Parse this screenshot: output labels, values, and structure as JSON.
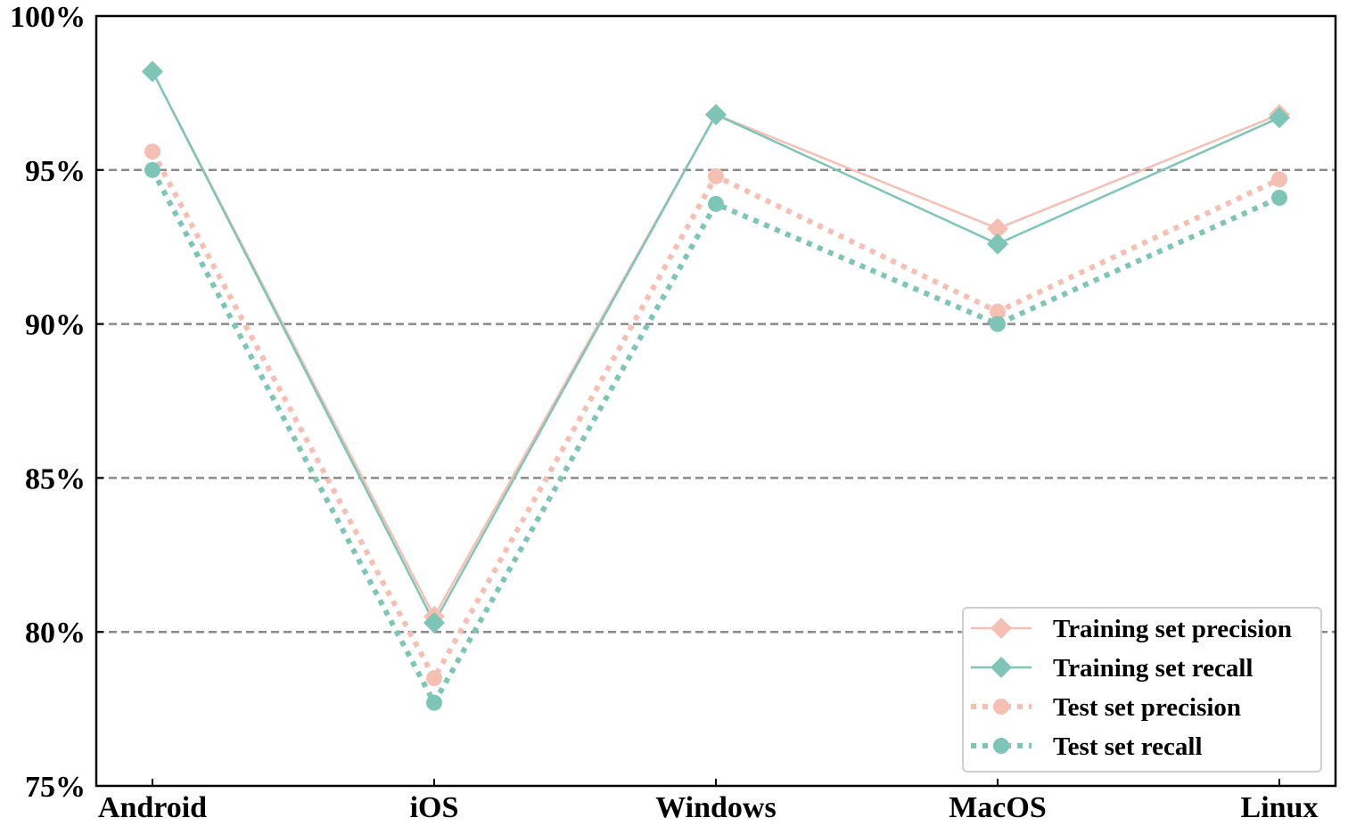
{
  "chart_data": {
    "type": "line",
    "categories": [
      "Android",
      "iOS",
      "Windows",
      "MacOS",
      "Linux"
    ],
    "ylim": [
      75,
      100
    ],
    "yticks": [
      75,
      80,
      85,
      90,
      95,
      100
    ],
    "ytick_labels": [
      "75%",
      "80%",
      "85%",
      "90%",
      "95%",
      "100%"
    ],
    "grid": "horizontal dashed at 80%, 85%, 90%, 95%",
    "legend_position": "bottom-right",
    "series": [
      {
        "name": "Training set precision",
        "values": [
          98.2,
          80.5,
          96.8,
          93.1,
          96.8
        ],
        "color": "#f6bfb4",
        "line": "solid",
        "marker": "diamond"
      },
      {
        "name": "Training set recall",
        "values": [
          98.2,
          80.3,
          96.8,
          92.6,
          96.7
        ],
        "color": "#7fc5b7",
        "line": "solid",
        "marker": "diamond"
      },
      {
        "name": "Test set precision",
        "values": [
          95.6,
          78.5,
          94.8,
          90.4,
          94.7
        ],
        "color": "#f6bfb4",
        "line": "dotted",
        "marker": "circle"
      },
      {
        "name": "Test set recall",
        "values": [
          95.0,
          77.7,
          93.9,
          90.0,
          94.1
        ],
        "color": "#7fc5b7",
        "line": "dotted",
        "marker": "circle"
      }
    ]
  }
}
